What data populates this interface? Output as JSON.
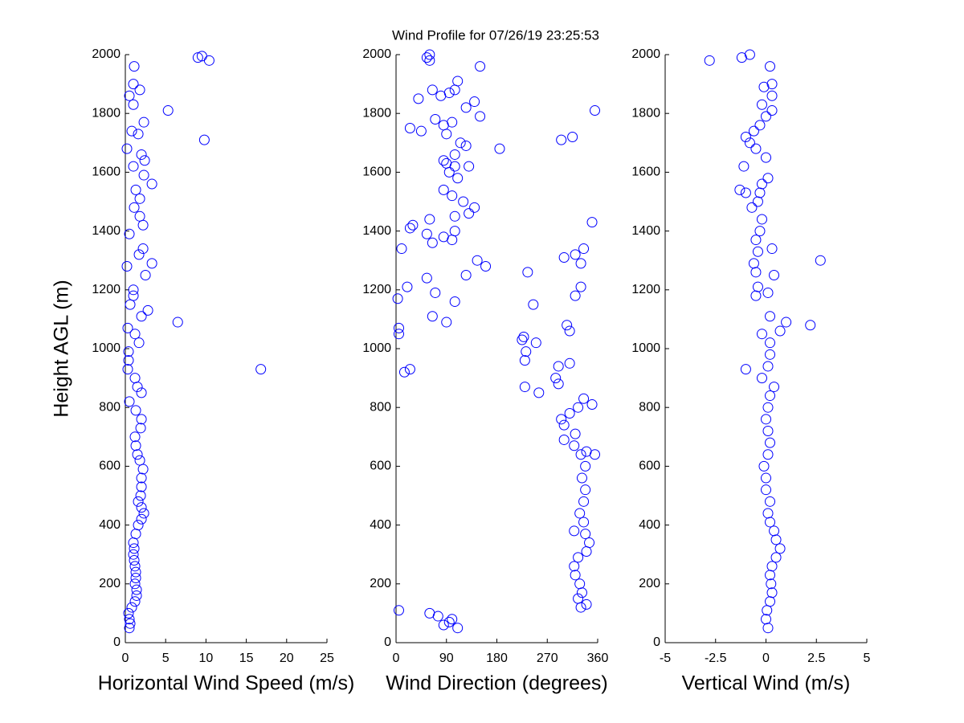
{
  "title": "Wind Profile for  07/26/19 23:25:53",
  "chart_data": [
    {
      "type": "scatter",
      "ylabel": "Height AGL (m)",
      "xlabel": "Horizontal Wind Speed (m/s)",
      "color": "#0000ff",
      "xlim": [
        0,
        25
      ],
      "xticks": [
        0,
        5,
        10,
        15,
        20,
        25
      ],
      "ylim": [
        0,
        2000
      ],
      "yticks": [
        0,
        200,
        400,
        600,
        800,
        1000,
        1200,
        1400,
        1600,
        1800,
        2000
      ],
      "x": [
        0.5,
        0.6,
        0.5,
        0.4,
        0.8,
        1.2,
        1.4,
        1.4,
        1.2,
        1.3,
        1.3,
        1.2,
        1.1,
        1.0,
        1.1,
        1.0,
        1.3,
        1.6,
        2.0,
        2.3,
        2.0,
        1.6,
        1.9,
        2.0,
        2.0,
        2.2,
        1.8,
        1.5,
        1.3,
        1.2,
        1.9,
        2.0,
        1.3,
        0.5,
        2.0,
        1.5,
        1.2,
        0.3,
        16.8,
        0.4,
        0.4,
        1.7,
        1.2,
        0.3,
        6.5,
        2.0,
        2.8,
        0.6,
        1.0,
        1.0,
        2.5,
        0.2,
        3.3,
        1.7,
        2.2,
        0.5,
        2.2,
        1.8,
        1.1,
        1.8,
        1.3,
        3.3,
        2.3,
        1.0,
        2.4,
        2.0,
        0.2,
        9.8,
        1.6,
        2.3,
        0.8,
        5.3,
        1.0,
        0.5,
        1.8,
        1.0,
        1.1,
        9.0,
        10.4,
        9.5
      ],
      "y": [
        50,
        65,
        80,
        100,
        120,
        140,
        160,
        180,
        200,
        220,
        240,
        260,
        280,
        300,
        320,
        340,
        370,
        400,
        420,
        440,
        460,
        480,
        500,
        530,
        560,
        590,
        620,
        640,
        670,
        700,
        730,
        760,
        790,
        820,
        850,
        870,
        900,
        930,
        930,
        960,
        990,
        1020,
        1050,
        1070,
        1090,
        1110,
        1130,
        1150,
        1180,
        1200,
        1250,
        1280,
        1290,
        1320,
        1340,
        1390,
        1420,
        1450,
        1480,
        1510,
        1540,
        1560,
        1590,
        1620,
        1640,
        1660,
        1680,
        1710,
        1730,
        1770,
        1740,
        1810,
        1830,
        1860,
        1880,
        1900,
        1960,
        1990,
        1980,
        1995
      ]
    },
    {
      "type": "scatter",
      "xlabel": "Wind Direction (degrees)",
      "color": "#0000ff",
      "xlim": [
        0,
        360
      ],
      "xticks": [
        0,
        90,
        180,
        270,
        360
      ],
      "ylim": [
        0,
        2000
      ],
      "yticks": [
        0,
        200,
        400,
        600,
        800,
        1000,
        1200,
        1400,
        1600,
        1800,
        2000
      ],
      "x": [
        110,
        60,
        75,
        85,
        100,
        95,
        5,
        330,
        325,
        340,
        332,
        328,
        320,
        318,
        325,
        340,
        345,
        338,
        318,
        335,
        328,
        335,
        338,
        332,
        338,
        330,
        355,
        340,
        318,
        320,
        300,
        300,
        295,
        310,
        325,
        335,
        350,
        255,
        230,
        290,
        285,
        310,
        290,
        230,
        232,
        228,
        250,
        225,
        310,
        305,
        5,
        5,
        25,
        15,
        90,
        65,
        105,
        245,
        3,
        20,
        70,
        235,
        320,
        330,
        300,
        320,
        335,
        330,
        55,
        125,
        145,
        160,
        10,
        65,
        85,
        100,
        55,
        25,
        30,
        60,
        105,
        350,
        105,
        140,
        130,
        85,
        100,
        120,
        110,
        95,
        105,
        130,
        85,
        90,
        105,
        115,
        125,
        185,
        295,
        315,
        25,
        45,
        90,
        70,
        85,
        100,
        125,
        140,
        150,
        355,
        40,
        65,
        80,
        105,
        110,
        95,
        60,
        55,
        60,
        150
      ],
      "y": [
        50,
        100,
        90,
        60,
        80,
        70,
        110,
        120,
        150,
        130,
        170,
        200,
        230,
        260,
        290,
        310,
        340,
        370,
        380,
        410,
        440,
        480,
        520,
        560,
        600,
        640,
        640,
        650,
        670,
        710,
        690,
        740,
        760,
        780,
        800,
        830,
        810,
        850,
        870,
        880,
        900,
        950,
        940,
        960,
        990,
        1040,
        1020,
        1030,
        1060,
        1080,
        1050,
        1070,
        930,
        920,
        1090,
        1110,
        1160,
        1150,
        1170,
        1210,
        1190,
        1260,
        1180,
        1210,
        1310,
        1320,
        1340,
        1290,
        1240,
        1250,
        1300,
        1280,
        1340,
        1360,
        1380,
        1370,
        1390,
        1410,
        1420,
        1440,
        1400,
        1430,
        1450,
        1480,
        1460,
        1540,
        1520,
        1500,
        1580,
        1600,
        1620,
        1620,
        1640,
        1630,
        1660,
        1700,
        1690,
        1680,
        1710,
        1720,
        1750,
        1740,
        1730,
        1780,
        1760,
        1770,
        1820,
        1840,
        1790,
        1810,
        1850,
        1880,
        1860,
        1880,
        1910,
        1870,
        1980,
        1990,
        2000,
        1960
      ]
    },
    {
      "type": "scatter",
      "xlabel": "Vertical Wind (m/s)",
      "color": "#0000ff",
      "xlim": [
        -5,
        5
      ],
      "xticks": [
        -5,
        -2.5,
        0,
        2.5,
        5
      ],
      "ylim": [
        0,
        2000
      ],
      "yticks": [
        0,
        200,
        400,
        600,
        800,
        1000,
        1200,
        1400,
        1600,
        1800,
        2000
      ],
      "x": [
        0.1,
        0.0,
        0.05,
        0.2,
        0.3,
        0.25,
        0.2,
        0.3,
        0.5,
        0.7,
        0.5,
        0.4,
        0.2,
        0.1,
        0.2,
        0.0,
        0.0,
        -0.1,
        0.1,
        0.2,
        0.1,
        0.0,
        0.1,
        0.2,
        0.4,
        -0.2,
        0.1,
        -1.0,
        0.2,
        0.2,
        -0.2,
        0.7,
        1.0,
        2.2,
        0.2,
        -0.5,
        0.1,
        -0.4,
        0.4,
        -0.5,
        2.7,
        -0.6,
        -0.4,
        0.3,
        -0.5,
        -0.3,
        -0.2,
        -0.7,
        -0.4,
        -0.3,
        -1.3,
        -1.0,
        -0.2,
        0.1,
        -1.1,
        0.0,
        -0.5,
        -0.8,
        -1.0,
        -0.6,
        -0.3,
        0.0,
        0.3,
        -0.2,
        0.3,
        -0.1,
        0.3,
        0.2,
        -2.8,
        -1.2,
        -0.8
      ],
      "y": [
        50,
        80,
        110,
        140,
        170,
        200,
        230,
        260,
        290,
        320,
        350,
        380,
        410,
        440,
        480,
        520,
        560,
        600,
        640,
        680,
        720,
        760,
        800,
        840,
        870,
        900,
        940,
        930,
        980,
        1020,
        1050,
        1060,
        1090,
        1080,
        1110,
        1180,
        1190,
        1210,
        1250,
        1260,
        1300,
        1290,
        1330,
        1340,
        1370,
        1400,
        1440,
        1480,
        1500,
        1530,
        1540,
        1530,
        1560,
        1580,
        1620,
        1650,
        1680,
        1700,
        1720,
        1740,
        1760,
        1790,
        1810,
        1830,
        1860,
        1890,
        1900,
        1960,
        1980,
        1990,
        2000
      ]
    }
  ]
}
